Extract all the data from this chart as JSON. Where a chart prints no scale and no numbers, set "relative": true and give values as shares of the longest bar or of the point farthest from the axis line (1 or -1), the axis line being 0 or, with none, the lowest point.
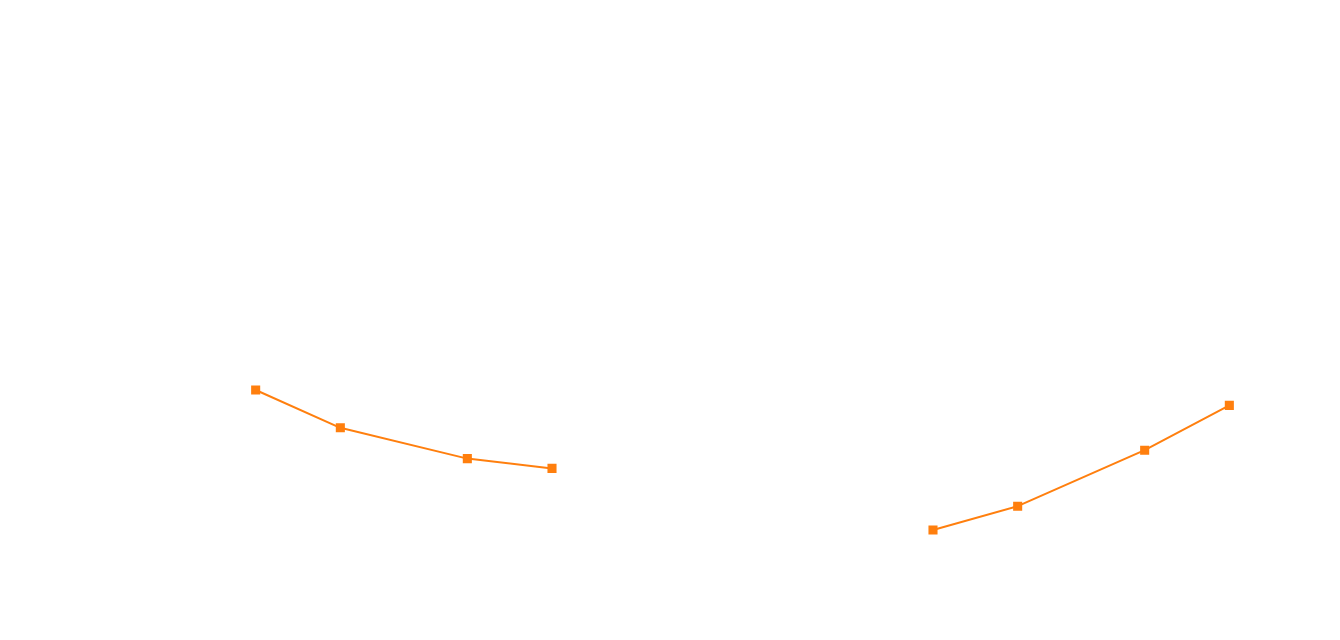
{
  "chart_data": {
    "type": "line",
    "relative": true,
    "marker": "square",
    "line_style": "solid",
    "categories": [
      null,
      null,
      null,
      null,
      null,
      null,
      null,
      null,
      null,
      null,
      null,
      null,
      null,
      null,
      null,
      null,
      null,
      null,
      null,
      null,
      null,
      null,
      null,
      null,
      null,
      null,
      null,
      null,
      null,
      null,
      null
    ],
    "series": [
      {
        "color": "#ff7f0e",
        "values": [
          null,
          null,
          null,
          null,
          null,
          1,
          null,
          0.73,
          null,
          null,
          0.51,
          null,
          0.44,
          null,
          null,
          null,
          null,
          null,
          null,
          null,
          null,
          null,
          null,
          null,
          null,
          null,
          null,
          null,
          null,
          null,
          null
        ]
      },
      {
        "color": "#ff7f0e",
        "values": [
          null,
          null,
          null,
          null,
          null,
          null,
          null,
          null,
          null,
          null,
          null,
          null,
          null,
          null,
          null,
          null,
          null,
          null,
          null,
          null,
          null,
          0,
          null,
          0.17,
          null,
          null,
          0.57,
          null,
          0.89,
          null,
          null
        ]
      }
    ]
  }
}
